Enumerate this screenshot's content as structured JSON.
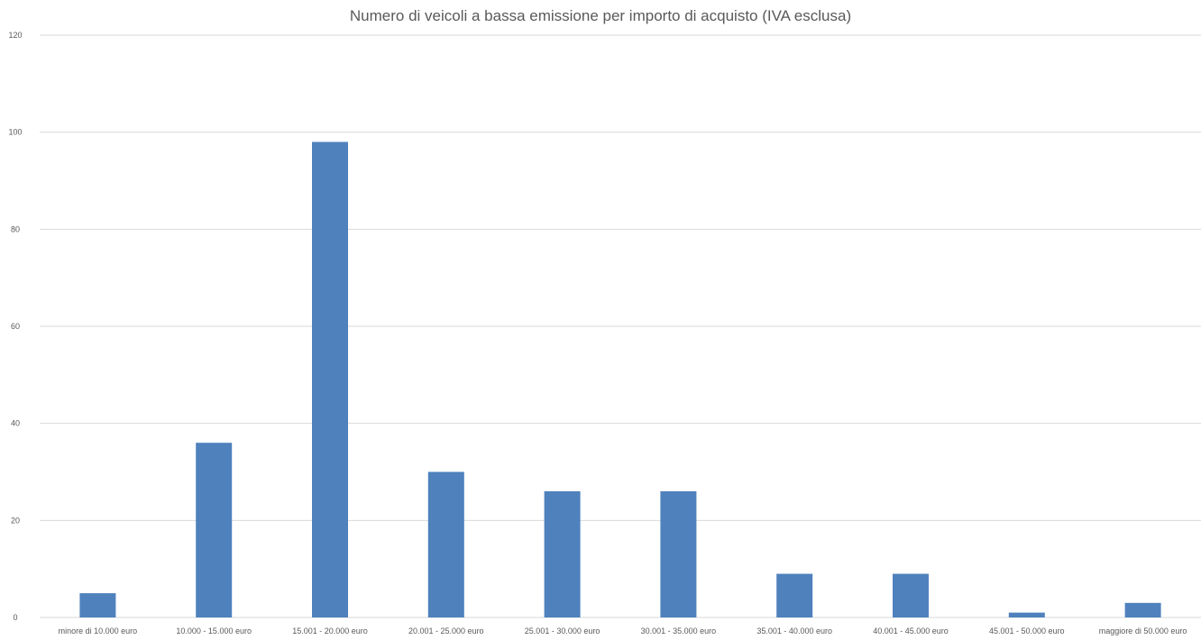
{
  "chart_data": {
    "type": "bar",
    "title": "Numero di veicoli a bassa emissione per importo di acquisto (IVA esclusa)",
    "categories": [
      "minore di 10.000 euro",
      "10.000 - 15.000 euro",
      "15.001 - 20.000 euro",
      "20.001 - 25.000 euro",
      "25.001 - 30.000 euro",
      "30.001 - 35.000 euro",
      "35.001 - 40.000 euro",
      "40.001 - 45.000 euro",
      "45.001 - 50.000 euro",
      "maggiore di 50.000 euro"
    ],
    "values": [
      5,
      36,
      98,
      30,
      26,
      26,
      9,
      9,
      1,
      3
    ],
    "ylim": [
      0,
      120
    ],
    "yticks": [
      0,
      20,
      40,
      60,
      80,
      100,
      120
    ],
    "grid": true,
    "legend": "none",
    "colors": {
      "bar": "#4f81bd",
      "grid": "#d9d9d9",
      "text": "#595959"
    }
  }
}
